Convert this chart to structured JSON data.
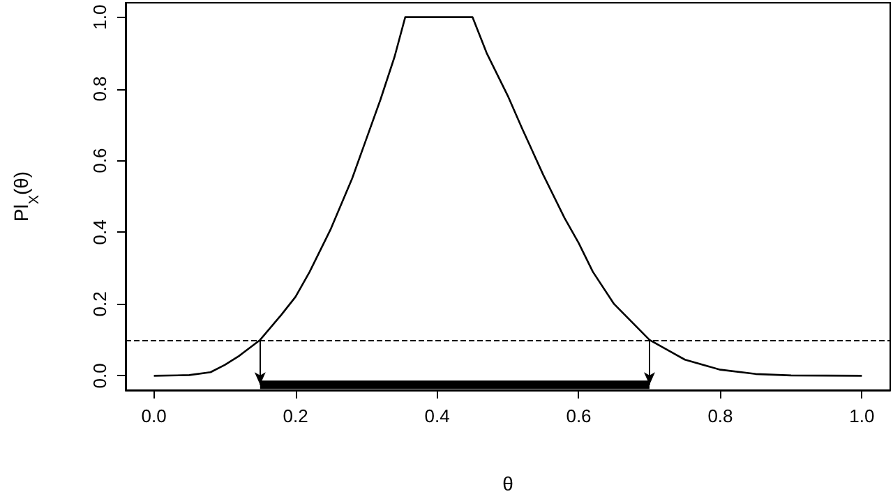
{
  "chart_data": {
    "type": "line",
    "xlabel": "θ",
    "ylabel": "Pl$_{X}$(θ)",
    "xlim": [
      -0.04,
      1.04
    ],
    "ylim": [
      -0.04,
      1.04
    ],
    "xticks": [
      {
        "value": 0,
        "label": "0.0"
      },
      {
        "value": 0.2,
        "label": "0.2"
      },
      {
        "value": 0.4,
        "label": "0.4"
      },
      {
        "value": 0.6,
        "label": "0.6"
      },
      {
        "value": 0.8,
        "label": "0.8"
      },
      {
        "value": 1,
        "label": "1.0"
      }
    ],
    "yticks": [
      {
        "value": 0,
        "label": "0.0"
      },
      {
        "value": 0.2,
        "label": "0.2"
      },
      {
        "value": 0.4,
        "label": "0.4"
      },
      {
        "value": 0.6,
        "label": "0.6"
      },
      {
        "value": 0.8,
        "label": "0.8"
      },
      {
        "value": 1,
        "label": "1.0"
      }
    ],
    "series": [
      {
        "color": "#000000",
        "x": [
          0,
          0.05,
          0.08,
          0.1,
          0.12,
          0.15,
          0.18,
          0.2,
          0.22,
          0.25,
          0.28,
          0.3,
          0.32,
          0.34,
          0.355,
          0.45,
          0.47,
          0.5,
          0.52,
          0.55,
          0.58,
          0.6,
          0.62,
          0.65,
          0.7,
          0.75,
          0.8,
          0.85,
          0.9,
          1.0
        ],
        "values": [
          0,
          0.002,
          0.01,
          0.03,
          0.055,
          0.1,
          0.17,
          0.22,
          0.29,
          0.41,
          0.55,
          0.66,
          0.77,
          0.89,
          1.0,
          1.0,
          0.9,
          0.78,
          0.69,
          0.56,
          0.44,
          0.37,
          0.29,
          0.2,
          0.1,
          0.045,
          0.017,
          0.005,
          0.001,
          0
        ]
      },
      {
        "color": "#000000",
        "x": [
          0.15,
          0.7
        ],
        "values": [
          -0.025,
          -0.025
        ]
      }
    ],
    "ref_lines": [
      {
        "axis": "y",
        "value": 0.1,
        "color": "#000000",
        "line_style": "dashed"
      }
    ],
    "marker": "none",
    "line_style": "solid",
    "grid": false
  }
}
